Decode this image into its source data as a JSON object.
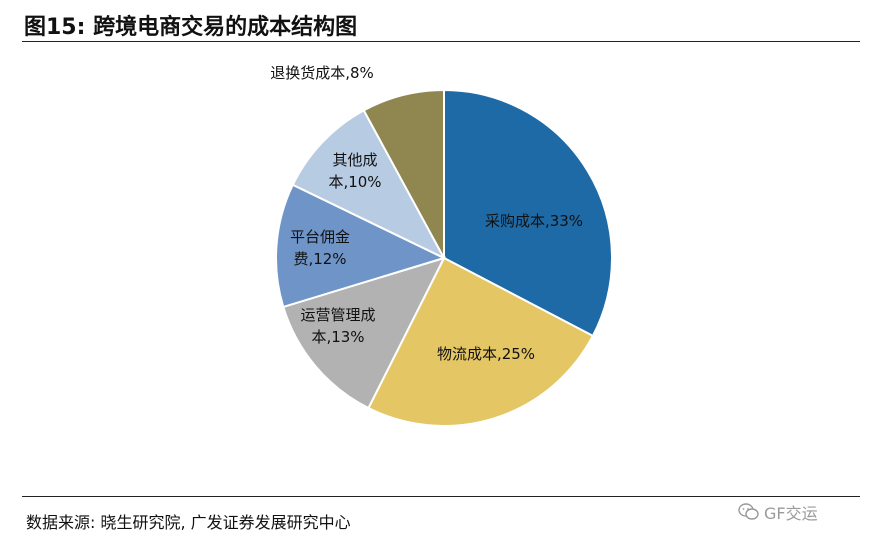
{
  "header": {
    "title": "图15:  跨境电商交易的成本结构图"
  },
  "chart_data": {
    "type": "pie",
    "title": "",
    "slices": [
      {
        "name": "采购成本",
        "value": 33,
        "label_lines": [
          "采购成本,33%"
        ],
        "color": "#1e6aa6",
        "text_color": "#111111"
      },
      {
        "name": "物流成本",
        "value": 25,
        "label_lines": [
          "物流成本,25%"
        ],
        "color": "#e4c664",
        "text_color": "#111111"
      },
      {
        "name": "运营管理成本",
        "value": 13,
        "label_lines": [
          "运营管理成",
          "本,13%"
        ],
        "color": "#b2b2b2",
        "text_color": "#111111"
      },
      {
        "name": "平台佣金费",
        "value": 12,
        "label_lines": [
          "平台佣金",
          "费,12%"
        ],
        "color": "#6f95c8",
        "text_color": "#111111"
      },
      {
        "name": "其他成本",
        "value": 10,
        "label_lines": [
          "其他成",
          "本,10%"
        ],
        "color": "#b7cbe3",
        "text_color": "#111111"
      },
      {
        "name": "退换货成本",
        "value": 8,
        "label_lines": [
          "退换货成本,8%"
        ],
        "color": "#8f8650",
        "text_color": "#111111"
      }
    ]
  },
  "footer": {
    "source": "数据来源:  晓生研究院,  广发证券发展研究中心",
    "watermark": "GF交运"
  }
}
